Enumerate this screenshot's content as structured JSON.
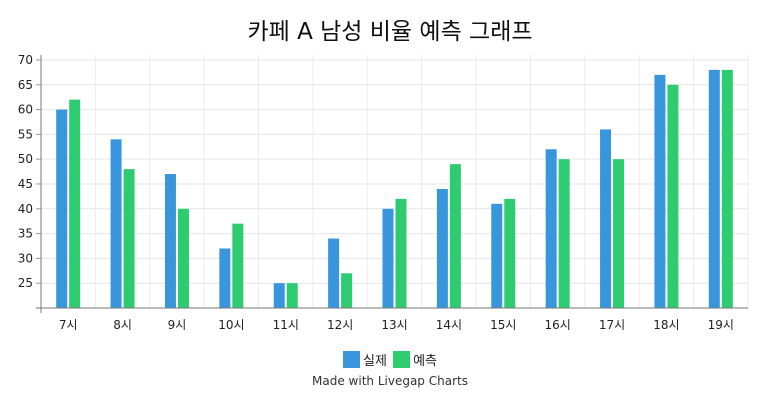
{
  "chart_data": {
    "type": "bar",
    "title": "카페 A 남성 비율 예측 그래프",
    "xlabel": "",
    "ylabel": "",
    "categories": [
      "7시",
      "8시",
      "9시",
      "10시",
      "11시",
      "12시",
      "13시",
      "14시",
      "15시",
      "16시",
      "17시",
      "18시",
      "19시"
    ],
    "series": [
      {
        "name": "실제",
        "color": "#3a96dc",
        "values": [
          60,
          54,
          47,
          32,
          25,
          34,
          40,
          44,
          41,
          52,
          56,
          67,
          68
        ]
      },
      {
        "name": "예측",
        "color": "#2ecc71",
        "values": [
          62,
          48,
          40,
          37,
          25,
          27,
          42,
          49,
          42,
          50,
          50,
          65,
          68
        ]
      }
    ],
    "ylim": [
      20,
      71
    ],
    "yticks": [
      25,
      30,
      35,
      40,
      45,
      50,
      55,
      60,
      65,
      70
    ],
    "grid": true,
    "legend_position": "bottom-center"
  },
  "footer": {
    "credit": "Made with Livegap Charts"
  }
}
